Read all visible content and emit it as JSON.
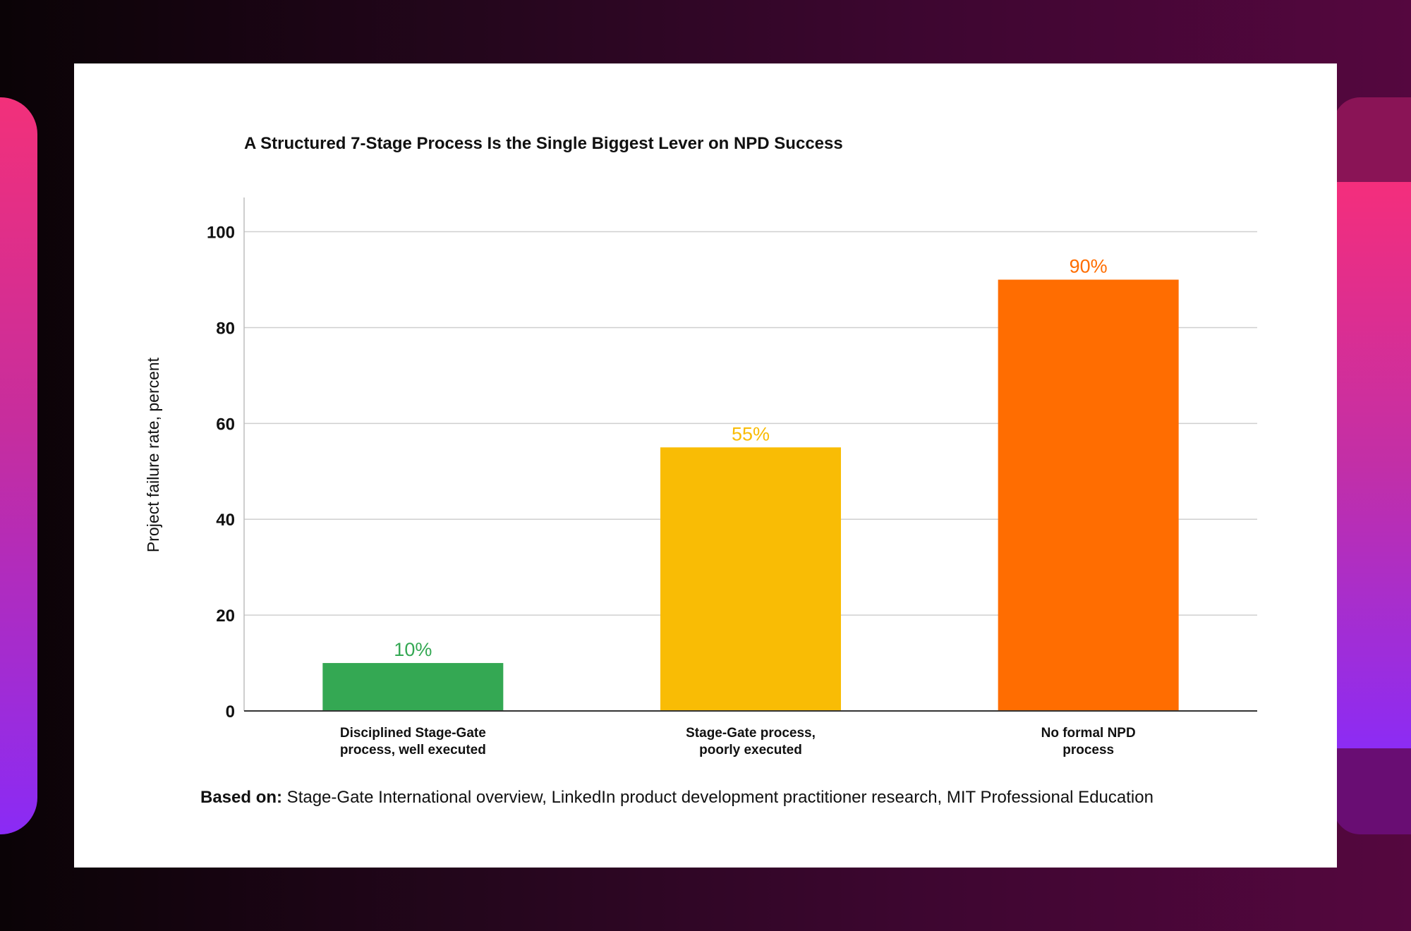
{
  "colors": {
    "well_executed": "#34a853",
    "poorly_executed": "#f9bc05",
    "no_process": "#ff6d01",
    "grid": "#cfcfcf",
    "axis": "#333333"
  },
  "chart_data": {
    "type": "bar",
    "title": "A Structured 7-Stage Process Is the Single Biggest Lever on NPD Success",
    "xlabel": "",
    "ylabel": "Project failure rate, percent",
    "ylim": [
      0,
      107
    ],
    "yticks": [
      0,
      20,
      40,
      60,
      80,
      100
    ],
    "grid": true,
    "categories": [
      [
        "Disciplined Stage-Gate",
        "process, well executed"
      ],
      [
        "Stage-Gate process,",
        "poorly executed"
      ],
      [
        "No formal NPD",
        "process"
      ]
    ],
    "values": [
      10,
      55,
      90
    ],
    "data_labels": [
      "10%",
      "55%",
      "90%"
    ]
  },
  "source": {
    "label": "Based on:",
    "text": " Stage-Gate International overview, LinkedIn product development practitioner research, MIT Professional Education"
  }
}
